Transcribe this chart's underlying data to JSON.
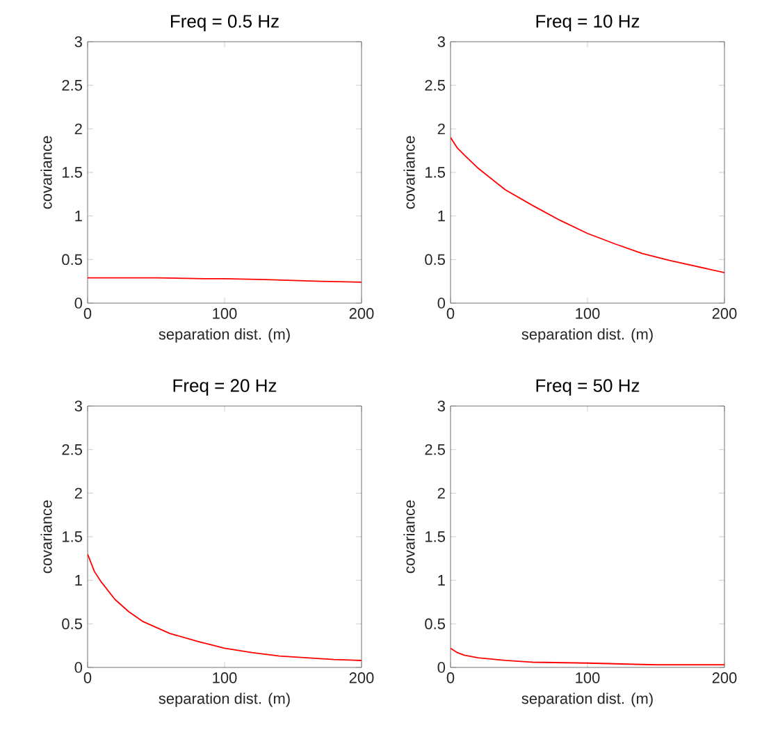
{
  "chart_data": [
    {
      "type": "line",
      "title": "Freq = 0.5 Hz",
      "xlabel": "separation dist. (m)",
      "ylabel": "covariance",
      "color": "#ff0000",
      "xlim": [
        0,
        200
      ],
      "ylim": [
        0,
        3
      ],
      "xticks": [
        0,
        100,
        200
      ],
      "yticks": [
        0,
        0.5,
        1,
        1.5,
        2,
        2.5,
        3
      ],
      "x": [
        0,
        50,
        85,
        100,
        130,
        150,
        170,
        200
      ],
      "values": [
        0.29,
        0.29,
        0.28,
        0.28,
        0.27,
        0.26,
        0.25,
        0.24
      ]
    },
    {
      "type": "line",
      "title": "Freq = 10 Hz",
      "xlabel": "separation dist. (m)",
      "ylabel": "covariance",
      "color": "#ff0000",
      "xlim": [
        0,
        200
      ],
      "ylim": [
        0,
        3
      ],
      "xticks": [
        0,
        100,
        200
      ],
      "yticks": [
        0,
        0.5,
        1,
        1.5,
        2,
        2.5,
        3
      ],
      "x": [
        0,
        5,
        10,
        20,
        40,
        60,
        80,
        100,
        120,
        140,
        160,
        180,
        200
      ],
      "values": [
        1.9,
        1.78,
        1.7,
        1.55,
        1.3,
        1.12,
        0.95,
        0.8,
        0.68,
        0.57,
        0.49,
        0.42,
        0.35
      ]
    },
    {
      "type": "line",
      "title": "Freq = 20 Hz",
      "xlabel": "separation dist. (m)",
      "ylabel": "covariance",
      "color": "#ff0000",
      "xlim": [
        0,
        200
      ],
      "ylim": [
        0,
        3
      ],
      "xticks": [
        0,
        100,
        200
      ],
      "yticks": [
        0,
        0.5,
        1,
        1.5,
        2,
        2.5,
        3
      ],
      "x": [
        0,
        5,
        10,
        20,
        30,
        40,
        60,
        80,
        100,
        120,
        140,
        160,
        180,
        200
      ],
      "values": [
        1.3,
        1.1,
        0.98,
        0.78,
        0.64,
        0.53,
        0.39,
        0.3,
        0.22,
        0.17,
        0.13,
        0.11,
        0.09,
        0.08
      ]
    },
    {
      "type": "line",
      "title": "Freq = 50 Hz",
      "xlabel": "separation dist. (m)",
      "ylabel": "covariance",
      "color": "#ff0000",
      "xlim": [
        0,
        200
      ],
      "ylim": [
        0,
        3
      ],
      "xticks": [
        0,
        100,
        200
      ],
      "yticks": [
        0,
        0.5,
        1,
        1.5,
        2,
        2.5,
        3
      ],
      "x": [
        0,
        5,
        10,
        20,
        40,
        60,
        100,
        150,
        200
      ],
      "values": [
        0.22,
        0.17,
        0.14,
        0.11,
        0.08,
        0.06,
        0.05,
        0.03,
        0.03
      ]
    }
  ]
}
